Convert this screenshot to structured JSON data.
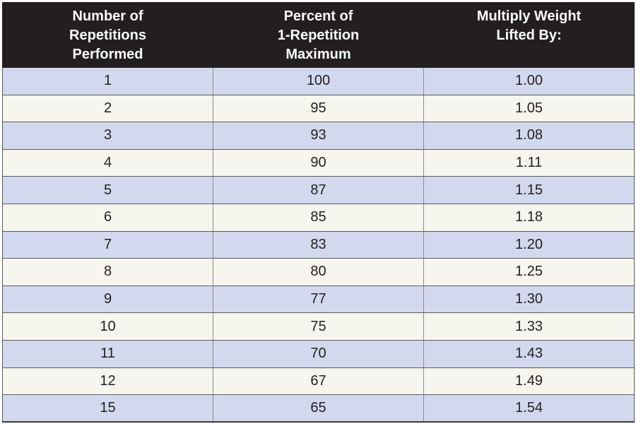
{
  "table": {
    "headers": [
      [
        "Number of",
        "Repetitions",
        "Performed"
      ],
      [
        "Percent of",
        "1-Repetition",
        "Maximum"
      ],
      [
        "Multiply Weight",
        "Lifted By:"
      ]
    ],
    "rows": [
      [
        "1",
        "100",
        "1.00"
      ],
      [
        "2",
        "95",
        "1.05"
      ],
      [
        "3",
        "93",
        "1.08"
      ],
      [
        "4",
        "90",
        "1.11"
      ],
      [
        "5",
        "87",
        "1.15"
      ],
      [
        "6",
        "85",
        "1.18"
      ],
      [
        "7",
        "83",
        "1.20"
      ],
      [
        "8",
        "80",
        "1.25"
      ],
      [
        "9",
        "77",
        "1.30"
      ],
      [
        "10",
        "75",
        "1.33"
      ],
      [
        "11",
        "70",
        "1.43"
      ],
      [
        "12",
        "67",
        "1.49"
      ],
      [
        "15",
        "65",
        "1.54"
      ]
    ]
  },
  "colors": {
    "header_background": "#231f20",
    "header_text": "#ffffff",
    "row_odd": "#d2d9ee",
    "row_even": "#f7f6ee",
    "cell_text": "#231f20"
  }
}
